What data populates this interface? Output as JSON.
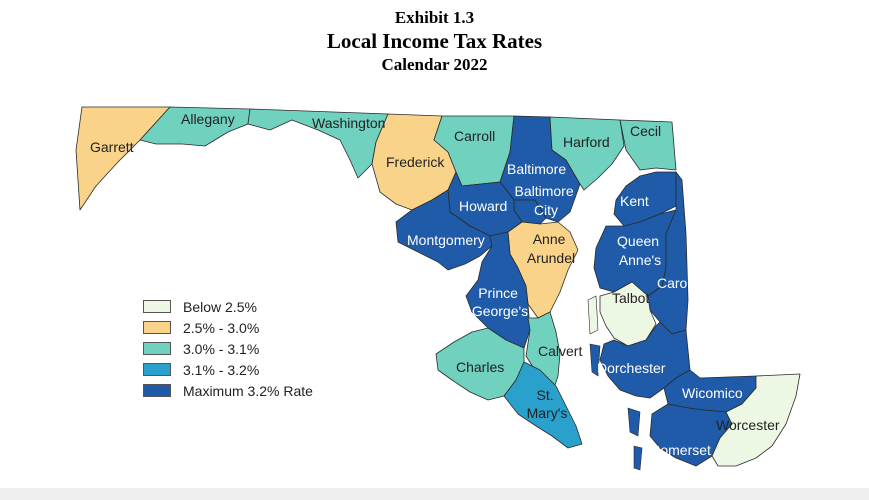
{
  "header": {
    "exhibit": "Exhibit 1.3",
    "title": "Local Income Tax Rates",
    "subtitle": "Calendar 2022"
  },
  "legend": [
    {
      "label": "Below 2.5%",
      "color": "#ecf7e4"
    },
    {
      "label": "2.5% - 3.0%",
      "color": "#f9d38a"
    },
    {
      "label": "3.0% - 3.1%",
      "color": "#6fd1be"
    },
    {
      "label": "3.1% - 3.2%",
      "color": "#2aa0cc"
    },
    {
      "label": "Maximum 3.2% Rate",
      "color": "#1f5ba8"
    }
  ],
  "water_color": "#ffffff",
  "counties": [
    {
      "id": "garrett",
      "label": "Garrett",
      "category": "2.5% - 3.0%"
    },
    {
      "id": "allegany",
      "label": "Allegany",
      "category": "3.0% - 3.1%"
    },
    {
      "id": "washington",
      "label": "Washington",
      "category": "3.0% - 3.1%"
    },
    {
      "id": "frederick",
      "label": "Frederick",
      "category": "2.5% - 3.0%"
    },
    {
      "id": "carroll",
      "label": "Carroll",
      "category": "3.0% - 3.1%"
    },
    {
      "id": "baltimore",
      "label": "Baltimore",
      "category": "Maximum 3.2% Rate"
    },
    {
      "id": "harford",
      "label": "Harford",
      "category": "3.0% - 3.1%"
    },
    {
      "id": "cecil",
      "label": "Cecil",
      "category": "3.0% - 3.1%"
    },
    {
      "id": "baltimore-city",
      "label": "Baltimore City",
      "category": "Maximum 3.2% Rate"
    },
    {
      "id": "howard",
      "label": "Howard",
      "category": "Maximum 3.2% Rate"
    },
    {
      "id": "montgomery",
      "label": "Montgomery",
      "category": "Maximum 3.2% Rate"
    },
    {
      "id": "anne-arundel",
      "label": "Anne Arundel",
      "category": "2.5% - 3.0%"
    },
    {
      "id": "prince-georges",
      "label": "Prince George's",
      "category": "Maximum 3.2% Rate"
    },
    {
      "id": "charles",
      "label": "Charles",
      "category": "3.0% - 3.1%"
    },
    {
      "id": "calvert",
      "label": "Calvert",
      "category": "3.0% - 3.1%"
    },
    {
      "id": "st-marys",
      "label": "St. Mary's",
      "category": "3.1% - 3.2%"
    },
    {
      "id": "kent",
      "label": "Kent",
      "category": "Maximum 3.2% Rate"
    },
    {
      "id": "queen-annes",
      "label": "Queen Anne's",
      "category": "Maximum 3.2% Rate"
    },
    {
      "id": "caroline",
      "label": "Caroline",
      "category": "Maximum 3.2% Rate"
    },
    {
      "id": "talbot",
      "label": "Talbot",
      "category": "Below 2.5%"
    },
    {
      "id": "dorchester",
      "label": "Dorchester",
      "category": "Maximum 3.2% Rate"
    },
    {
      "id": "wicomico",
      "label": "Wicomico",
      "category": "Maximum 3.2% Rate"
    },
    {
      "id": "somerset",
      "label": "Somerset",
      "category": "Maximum 3.2% Rate"
    },
    {
      "id": "worcester",
      "label": "Worcester",
      "category": "Below 2.5%"
    }
  ]
}
